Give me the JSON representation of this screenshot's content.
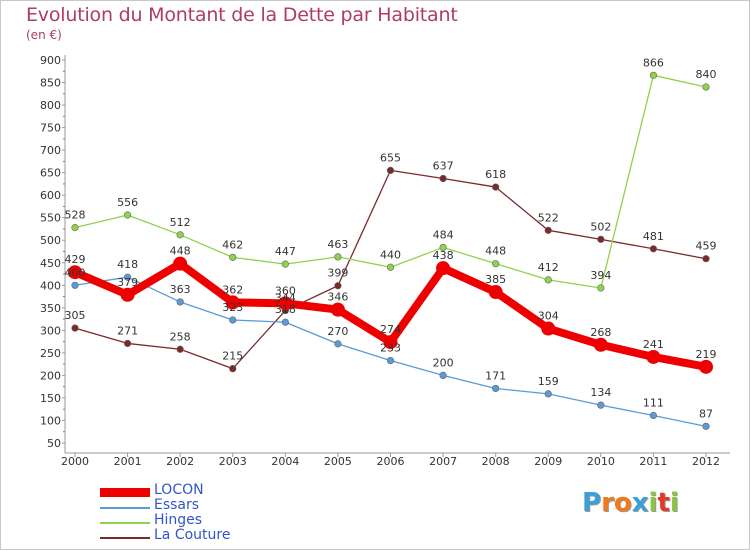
{
  "title": "Evolution du Montant de la Dette par Habitant",
  "unit": "(en €)",
  "logo": {
    "text": [
      "P",
      "r",
      "o",
      "x",
      "i",
      "t",
      "i"
    ],
    "colors": [
      "#3aa0d8",
      "#f07a1a",
      "#f07a1a",
      "#3aa0d8",
      "#8cc63f",
      "#e03a2a",
      "#8cc63f"
    ]
  },
  "chart_data": {
    "type": "line",
    "title": "Evolution du Montant de la Dette par Habitant",
    "ylabel": "(en €)",
    "xlabel": "",
    "categories": [
      "2000",
      "2001",
      "2002",
      "2003",
      "2004",
      "2005",
      "2006",
      "2007",
      "2008",
      "2009",
      "2010",
      "2011",
      "2012"
    ],
    "ylim": [
      50,
      900
    ],
    "yticks": [
      50,
      100,
      150,
      200,
      250,
      300,
      350,
      400,
      450,
      500,
      550,
      600,
      650,
      700,
      750,
      800,
      850,
      900
    ],
    "grid": false,
    "legend_position": "bottom-left",
    "series": [
      {
        "name": "LOCON",
        "color": "#ee0000",
        "values": [
          429,
          379,
          448,
          362,
          360,
          346,
          274,
          438,
          385,
          304,
          268,
          241,
          219
        ]
      },
      {
        "name": "Essars",
        "color": "#5b9bd5",
        "values": [
          400,
          418,
          363,
          323,
          318,
          270,
          233,
          200,
          171,
          159,
          134,
          111,
          87
        ]
      },
      {
        "name": "Hinges",
        "color": "#8fd34a",
        "values": [
          528,
          556,
          512,
          462,
          447,
          463,
          440,
          484,
          448,
          412,
          394,
          866,
          840
        ]
      },
      {
        "name": "La Couture",
        "color": "#7b2a2a",
        "values": [
          305,
          271,
          258,
          215,
          344,
          399,
          655,
          637,
          618,
          522,
          502,
          481,
          459
        ]
      }
    ],
    "labels": [
      {
        "series": "LOCON",
        "values": [
          "429",
          "379",
          "448",
          "362",
          "360",
          "346",
          "274",
          "438",
          "385",
          "304",
          "268",
          "241",
          "219"
        ]
      },
      {
        "series": "Essars",
        "values": [
          "400",
          "418",
          "363",
          "323",
          "318",
          "270",
          "233",
          "200",
          "171",
          "159",
          "134",
          "111",
          "87"
        ]
      },
      {
        "series": "Hinges",
        "values": [
          "528",
          "556",
          "512",
          "462",
          "447",
          "463",
          "440",
          "484",
          "448",
          "412",
          "394",
          "866",
          "840"
        ]
      },
      {
        "series": "La Couture",
        "values": [
          "305",
          "271",
          "258",
          "215",
          "344",
          "399",
          "655",
          "637",
          "618",
          "522",
          "502",
          "481",
          "459"
        ]
      }
    ]
  }
}
